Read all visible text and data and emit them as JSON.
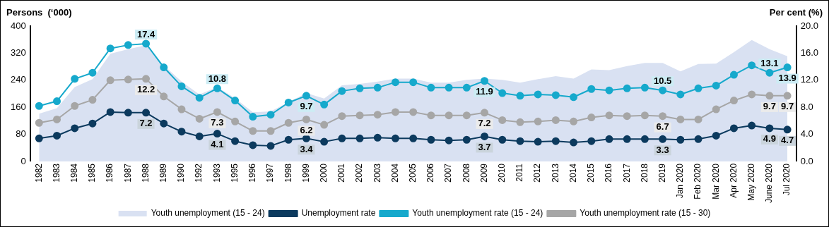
{
  "chart_data": {
    "type": "line",
    "ylabel": "Persons  (‘000)",
    "y2label": "Per cent (%)",
    "categories": [
      "1982",
      "1983",
      "1984",
      "1985",
      "1986",
      "1987",
      "1988",
      "1989",
      "1990",
      "1992",
      "1993",
      "1995",
      "1996",
      "1997",
      "1998",
      "1999",
      "2000",
      "2001",
      "2002",
      "2003",
      "2004",
      "2005",
      "2006",
      "2007",
      "2008",
      "2009",
      "2010",
      "2011",
      "2012",
      "2013",
      "2014",
      "2015",
      "2016",
      "2017",
      "2018",
      "2019",
      "Jan 2020",
      "Feb 2020",
      "Mar 2020",
      "Apr 2020",
      "May 2020",
      "June 2020",
      "Jul 2020"
    ],
    "series": [
      {
        "name": "Youth unemployment (15 - 24)",
        "type": "area",
        "color": "#d9e1f2",
        "values": [
          141,
          157,
          220,
          243,
          318,
          332,
          343,
          284,
          236,
          198,
          220,
          187,
          145,
          148,
          175,
          202,
          186,
          225,
          229,
          236,
          245,
          245,
          233,
          233,
          241,
          245,
          241,
          233,
          243,
          252,
          245,
          272,
          270,
          282,
          291,
          291,
          266,
          288,
          289,
          323,
          359,
          332,
          311
        ]
      },
      {
        "name": "Unemployment rate",
        "axis": "y2",
        "marker": "circle",
        "color": "#0c3a5e",
        "values": [
          3.4,
          3.8,
          4.9,
          5.6,
          7.3,
          7.2,
          7.2,
          5.6,
          4.4,
          3.7,
          4.1,
          3.0,
          2.4,
          2.3,
          3.2,
          3.4,
          2.9,
          3.4,
          3.4,
          3.5,
          3.4,
          3.4,
          3.2,
          3.1,
          3.2,
          3.7,
          3.2,
          3.0,
          2.9,
          3.0,
          2.8,
          3.0,
          3.3,
          3.3,
          3.3,
          3.3,
          3.2,
          3.3,
          3.8,
          4.9,
          5.3,
          4.9,
          4.7
        ],
        "value_labels": [
          null,
          null,
          null,
          null,
          null,
          null,
          "7.2",
          null,
          null,
          null,
          "4.1",
          null,
          null,
          null,
          null,
          "3.4",
          null,
          null,
          null,
          null,
          null,
          null,
          null,
          null,
          null,
          "3.7",
          null,
          null,
          null,
          null,
          null,
          null,
          null,
          null,
          null,
          "3.3",
          null,
          null,
          null,
          null,
          null,
          "4.9",
          "4.7"
        ]
      },
      {
        "name": "Youth unemployment rate (15 - 24)",
        "axis": "y2",
        "marker": "circle",
        "color": "#16a9cc",
        "values": [
          8.2,
          8.9,
          12.2,
          13.1,
          16.7,
          17.2,
          17.4,
          13.9,
          11.1,
          9.4,
          10.8,
          9.0,
          6.6,
          6.9,
          8.7,
          9.7,
          8.4,
          10.4,
          10.8,
          10.9,
          11.7,
          11.7,
          10.9,
          10.9,
          10.9,
          11.9,
          10.1,
          9.7,
          9.9,
          9.8,
          9.5,
          10.7,
          10.5,
          10.8,
          10.9,
          10.5,
          9.9,
          10.8,
          11.2,
          12.8,
          14.2,
          13.1,
          13.9
        ],
        "value_labels": [
          null,
          null,
          null,
          null,
          null,
          null,
          "17.4",
          null,
          null,
          null,
          "10.8",
          null,
          null,
          null,
          null,
          "9.7",
          null,
          null,
          null,
          null,
          null,
          null,
          null,
          null,
          null,
          "11.9",
          null,
          null,
          null,
          null,
          null,
          null,
          null,
          null,
          null,
          "10.5",
          null,
          null,
          null,
          null,
          null,
          "13.1",
          "13.9"
        ]
      },
      {
        "name": "Youth unemployment rate (15 - 30)",
        "axis": "y2",
        "marker": "circle",
        "color": "#a6a6a6",
        "values": [
          5.7,
          6.2,
          8.2,
          9.1,
          12.0,
          12.1,
          12.2,
          9.6,
          7.7,
          6.3,
          7.3,
          5.9,
          4.5,
          4.5,
          5.7,
          6.2,
          5.4,
          6.7,
          6.8,
          6.9,
          7.3,
          7.3,
          6.8,
          6.8,
          6.8,
          7.2,
          6.1,
          5.8,
          5.9,
          6.1,
          5.9,
          6.5,
          6.8,
          6.7,
          6.8,
          6.7,
          6.2,
          6.2,
          7.7,
          9.0,
          9.9,
          9.7,
          9.7
        ],
        "value_labels": [
          null,
          null,
          null,
          null,
          null,
          null,
          "12.2",
          null,
          null,
          null,
          "7.3",
          null,
          null,
          null,
          null,
          "6.2",
          null,
          null,
          null,
          null,
          null,
          null,
          null,
          null,
          null,
          "7.2",
          null,
          null,
          null,
          null,
          null,
          null,
          null,
          null,
          null,
          "6.7",
          null,
          null,
          null,
          null,
          null,
          "9.7",
          "9.7"
        ]
      }
    ],
    "ylim": [
      0,
      400
    ],
    "yticks": [
      0,
      80,
      160,
      240,
      320,
      400
    ],
    "y2lim": [
      0,
      20
    ],
    "y2ticks": [
      {
        "value": 0,
        "label": "0.0"
      },
      {
        "value": 4,
        "label": "4.0"
      },
      {
        "value": 8,
        "label": "8.0"
      },
      {
        "value": 12,
        "label": "12.0"
      },
      {
        "value": 16,
        "label": "16.0"
      },
      {
        "value": 20,
        "label": "20.0"
      }
    ],
    "grid": false,
    "legend": "bottom",
    "line_style": "solid"
  }
}
